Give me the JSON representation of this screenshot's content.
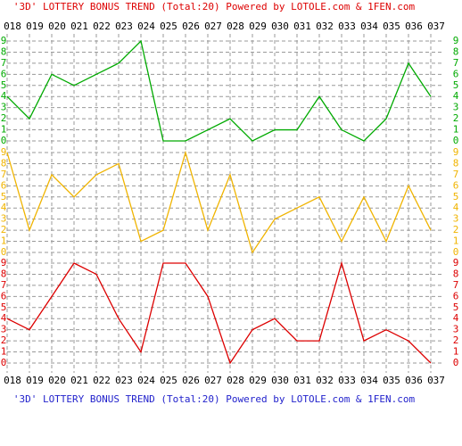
{
  "title": "'3D' LOTTERY BONUS TREND (Total:20)  Powered by LOTOLE.com & 1FEN.com",
  "footer": "'3D' LOTTERY BONUS TREND (Total:20)  Powered by LOTOLE.com & 1FEN.com",
  "chart_data": {
    "type": "line",
    "categories": [
      "018",
      "019",
      "020",
      "021",
      "022",
      "023",
      "024",
      "025",
      "026",
      "027",
      "028",
      "029",
      "030",
      "031",
      "032",
      "033",
      "034",
      "035",
      "036",
      "037"
    ],
    "ylim": [
      0,
      9
    ],
    "yticks": [
      0,
      1,
      2,
      3,
      4,
      5,
      6,
      7,
      8,
      9
    ],
    "grid": true,
    "series": [
      {
        "color": "#00aa00",
        "values": [
          4,
          2,
          6,
          5,
          6,
          7,
          9,
          0,
          0,
          1,
          2,
          0,
          1,
          1,
          4,
          1,
          0,
          2,
          7,
          4
        ]
      },
      {
        "color": "#f0b400",
        "values": [
          9,
          2,
          7,
          5,
          7,
          8,
          1,
          2,
          9,
          2,
          7,
          0,
          3,
          4,
          5,
          1,
          5,
          1,
          6,
          2
        ]
      },
      {
        "color": "#dd0000",
        "values": [
          4,
          3,
          6,
          9,
          8,
          4,
          1,
          9,
          9,
          6,
          0,
          3,
          4,
          2,
          2,
          9,
          2,
          3,
          2,
          0
        ]
      }
    ]
  }
}
